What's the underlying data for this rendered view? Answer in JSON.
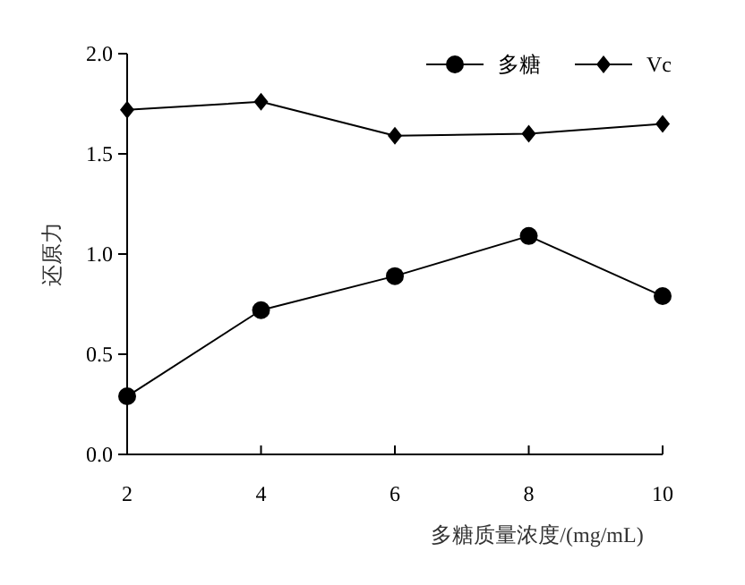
{
  "chart_data": {
    "type": "line",
    "xlabel": "多糖质量浓度/(mg/mL)",
    "ylabel": "还原力",
    "x": [
      2,
      4,
      6,
      8,
      10
    ],
    "series": [
      {
        "name": "多糖",
        "color": "#000000",
        "marker": "circle",
        "values": [
          0.29,
          0.72,
          0.89,
          1.09,
          0.79
        ]
      },
      {
        "name": "Vc",
        "color": "#000000",
        "marker": "diamond",
        "values": [
          1.72,
          1.76,
          1.59,
          1.6,
          1.65
        ]
      }
    ],
    "xlim": [
      2,
      10
    ],
    "xticks": [
      2,
      4,
      6,
      8,
      10
    ],
    "ylim": [
      0,
      2
    ],
    "yticks": [
      {
        "value": 0,
        "label": "0.0"
      },
      {
        "value": 0.5,
        "label": "0.5"
      },
      {
        "value": 1,
        "label": "1.0"
      },
      {
        "value": 1.5,
        "label": "1.5"
      },
      {
        "value": 2,
        "label": "2.0"
      }
    ],
    "legend": "top right",
    "grid": false,
    "line_style": "solid"
  }
}
